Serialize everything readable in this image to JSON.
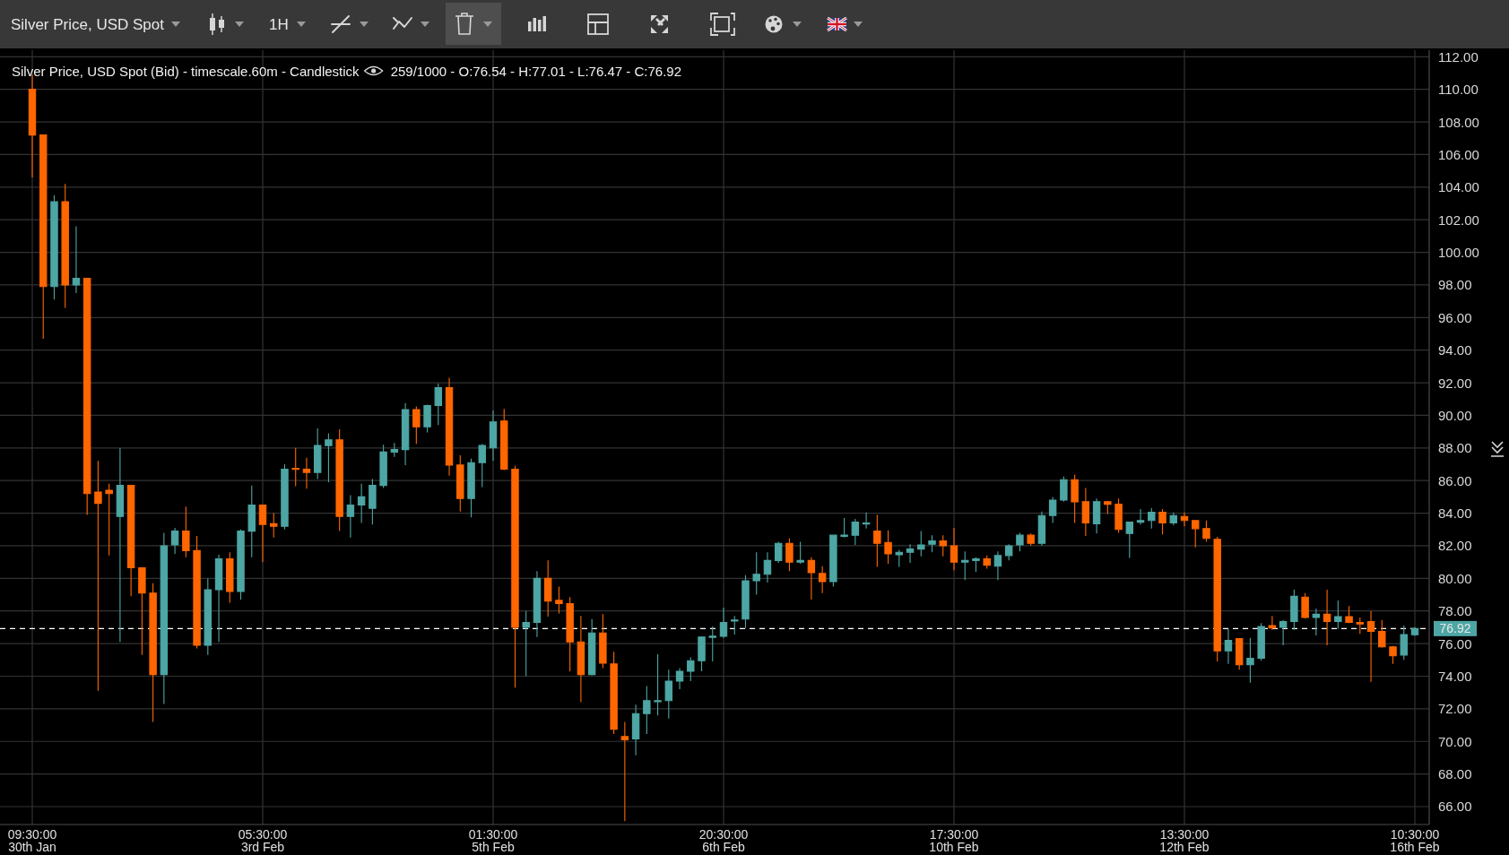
{
  "chart_data": {
    "type": "candlestick",
    "title": "Silver Price, USD Spot",
    "subtitle": "Silver Price, USD Spot (Bid) - timescale.60m - Candlestick",
    "annotations": [
      "259/1000 - O:76.54 - H:77.01 - L:76.47 - C:76.92",
      "1H"
    ],
    "categories": [
      "09:30:00\n30th Jan",
      null,
      null,
      null,
      null,
      null,
      null,
      null,
      null,
      null,
      null,
      null,
      null,
      null,
      null,
      null,
      null,
      null,
      null,
      null,
      null,
      "05:30:00\n3rd Feb",
      null,
      null,
      null,
      null,
      null,
      null,
      null,
      null,
      null,
      null,
      null,
      null,
      null,
      null,
      null,
      null,
      null,
      null,
      null,
      null,
      "01:30:00\n5th Feb",
      null,
      null,
      null,
      null,
      null,
      null,
      null,
      null,
      null,
      null,
      null,
      null,
      null,
      null,
      null,
      null,
      null,
      null,
      null,
      null,
      "20:30:00\n6th Feb",
      null,
      null,
      null,
      null,
      null,
      null,
      null,
      null,
      null,
      null,
      null,
      null,
      null,
      null,
      null,
      null,
      null,
      null,
      null,
      null,
      "17:30:00\n10th Feb",
      null,
      null,
      null,
      null,
      null,
      null,
      null,
      null,
      null,
      null,
      null,
      null,
      null,
      null,
      null,
      null,
      null,
      null,
      null,
      null,
      "13:30:00\n12th Feb",
      null,
      null,
      null,
      null,
      null,
      null,
      null,
      null,
      null,
      null,
      null,
      null,
      null,
      null,
      null,
      null,
      null,
      null,
      null,
      null,
      "10:30:00\n16th Feb"
    ],
    "ohlc": [
      [
        110.0,
        110.9,
        104.6,
        107.2
      ],
      [
        107.2,
        107.2,
        94.7,
        97.9
      ],
      [
        97.9,
        103.5,
        97.1,
        103.1
      ],
      [
        103.1,
        104.2,
        96.6,
        98.0
      ],
      [
        98.0,
        101.6,
        97.5,
        98.4
      ],
      [
        98.4,
        98.4,
        83.9,
        85.2
      ],
      [
        85.3,
        87.2,
        73.1,
        84.6
      ],
      [
        85.4,
        85.8,
        81.4,
        85.2
      ],
      [
        83.8,
        88.0,
        76.1,
        85.7
      ],
      [
        85.7,
        85.7,
        78.9,
        80.65
      ],
      [
        80.65,
        80.65,
        75.3,
        79.1
      ],
      [
        79.1,
        79.7,
        71.2,
        74.1
      ],
      [
        74.1,
        82.8,
        72.3,
        82.0
      ],
      [
        82.05,
        83.1,
        81.5,
        82.9
      ],
      [
        82.9,
        84.4,
        81.3,
        81.7
      ],
      [
        81.7,
        82.6,
        75.7,
        75.9
      ],
      [
        75.9,
        80.0,
        75.3,
        79.3
      ],
      [
        79.3,
        81.45,
        76.1,
        81.2
      ],
      [
        81.2,
        81.6,
        78.5,
        79.2
      ],
      [
        79.2,
        83.0,
        78.7,
        82.9
      ],
      [
        82.9,
        85.7,
        81.3,
        84.5
      ],
      [
        84.5,
        84.5,
        81.0,
        83.3
      ],
      [
        83.35,
        84.0,
        82.5,
        83.2
      ],
      [
        83.2,
        87.0,
        83.0,
        86.7
      ],
      [
        86.75,
        88.0,
        85.65,
        86.7
      ],
      [
        86.7,
        87.4,
        85.5,
        86.5
      ],
      [
        86.5,
        89.2,
        86.1,
        88.15
      ],
      [
        88.15,
        88.9,
        85.9,
        88.5
      ],
      [
        88.5,
        89.15,
        82.9,
        83.8
      ],
      [
        83.8,
        85.1,
        82.5,
        84.5
      ],
      [
        84.5,
        85.8,
        83.4,
        85.0
      ],
      [
        84.3,
        86.1,
        83.3,
        85.7
      ],
      [
        85.7,
        88.2,
        85.55,
        87.75
      ],
      [
        87.75,
        88.3,
        87.45,
        87.9
      ],
      [
        87.9,
        90.75,
        86.95,
        90.35
      ],
      [
        90.35,
        90.55,
        88.25,
        89.3
      ],
      [
        89.3,
        90.65,
        88.95,
        90.6
      ],
      [
        90.6,
        91.95,
        89.4,
        91.7
      ],
      [
        91.7,
        92.3,
        86.3,
        86.95
      ],
      [
        86.95,
        87.55,
        84.1,
        84.9
      ],
      [
        84.9,
        87.35,
        83.75,
        87.1
      ],
      [
        87.1,
        88.25,
        85.6,
        88.15
      ],
      [
        88.0,
        90.3,
        87.2,
        89.6
      ],
      [
        89.65,
        90.4,
        86.65,
        86.7
      ],
      [
        86.7,
        86.9,
        73.3,
        77.0
      ],
      [
        77.0,
        78.0,
        74.0,
        77.3
      ],
      [
        77.3,
        80.45,
        76.4,
        80.0
      ],
      [
        80.0,
        81.1,
        77.65,
        78.6
      ],
      [
        78.65,
        79.5,
        77.85,
        78.45
      ],
      [
        78.45,
        78.85,
        74.3,
        76.1
      ],
      [
        76.1,
        77.7,
        72.4,
        74.1
      ],
      [
        74.1,
        77.5,
        74.05,
        76.65
      ],
      [
        76.65,
        77.8,
        74.5,
        74.8
      ],
      [
        74.75,
        75.5,
        70.45,
        70.75
      ],
      [
        70.3,
        71.2,
        65.1,
        70.1
      ],
      [
        70.15,
        72.25,
        69.15,
        71.7
      ],
      [
        71.7,
        73.4,
        70.45,
        72.5
      ],
      [
        72.5,
        75.35,
        71.6,
        72.5
      ],
      [
        72.5,
        74.4,
        71.4,
        73.7
      ],
      [
        73.7,
        74.5,
        73.2,
        74.3
      ],
      [
        74.3,
        75.15,
        73.7,
        74.95
      ],
      [
        74.95,
        76.45,
        74.3,
        76.4
      ],
      [
        76.4,
        77.05,
        74.9,
        76.45
      ],
      [
        76.45,
        78.2,
        76.35,
        77.3
      ],
      [
        77.4,
        77.7,
        76.55,
        77.45
      ],
      [
        77.5,
        80.2,
        76.95,
        79.85
      ],
      [
        79.85,
        81.6,
        79.0,
        80.25
      ],
      [
        80.25,
        81.6,
        79.75,
        81.1
      ],
      [
        81.1,
        82.25,
        80.95,
        82.15
      ],
      [
        82.15,
        82.45,
        80.45,
        81.0
      ],
      [
        81.0,
        82.25,
        80.9,
        81.1
      ],
      [
        81.1,
        81.3,
        78.7,
        80.35
      ],
      [
        80.3,
        80.75,
        79.1,
        79.8
      ],
      [
        79.8,
        82.65,
        79.5,
        82.65
      ],
      [
        82.65,
        83.7,
        82.5,
        82.65
      ],
      [
        82.65,
        83.65,
        82.05,
        83.45
      ],
      [
        83.4,
        84.05,
        83.05,
        83.4
      ],
      [
        82.9,
        83.9,
        80.7,
        82.15
      ],
      [
        82.2,
        82.95,
        80.9,
        81.5
      ],
      [
        81.45,
        81.75,
        80.7,
        81.6
      ],
      [
        81.6,
        82.1,
        80.95,
        81.8
      ],
      [
        81.8,
        82.9,
        81.35,
        82.05
      ],
      [
        82.1,
        82.65,
        81.6,
        82.3
      ],
      [
        82.3,
        82.65,
        81.35,
        82.0
      ],
      [
        82.0,
        83.1,
        80.5,
        81.0
      ],
      [
        81.0,
        81.65,
        79.9,
        81.1
      ],
      [
        81.1,
        81.3,
        80.4,
        81.2
      ],
      [
        81.2,
        81.4,
        80.6,
        80.8
      ],
      [
        80.75,
        81.65,
        79.9,
        81.4
      ],
      [
        81.4,
        82.1,
        81.1,
        82.0
      ],
      [
        82.05,
        82.8,
        81.65,
        82.65
      ],
      [
        82.65,
        82.75,
        82.0,
        82.15
      ],
      [
        82.15,
        84.1,
        82.0,
        83.85
      ],
      [
        83.85,
        85.0,
        83.4,
        84.8
      ],
      [
        84.8,
        86.25,
        84.7,
        86.05
      ],
      [
        86.05,
        86.35,
        83.4,
        84.7
      ],
      [
        84.7,
        85.55,
        82.6,
        83.4
      ],
      [
        83.35,
        84.9,
        82.75,
        84.7
      ],
      [
        84.7,
        84.75,
        83.95,
        84.55
      ],
      [
        84.55,
        84.9,
        82.8,
        83.0
      ],
      [
        82.75,
        83.45,
        81.25,
        83.45
      ],
      [
        83.45,
        84.25,
        83.3,
        83.55
      ],
      [
        83.55,
        84.3,
        83.05,
        84.05
      ],
      [
        84.05,
        84.25,
        82.7,
        83.4
      ],
      [
        83.4,
        84.05,
        83.25,
        83.85
      ],
      [
        83.8,
        84.05,
        83.2,
        83.55
      ],
      [
        83.55,
        83.55,
        81.9,
        83.05
      ],
      [
        83.05,
        83.55,
        82.25,
        82.45
      ],
      [
        82.4,
        82.55,
        74.9,
        75.55
      ],
      [
        75.55,
        76.9,
        74.75,
        76.2
      ],
      [
        76.3,
        76.3,
        74.4,
        74.7
      ],
      [
        74.7,
        76.35,
        73.6,
        75.1
      ],
      [
        75.1,
        77.25,
        74.95,
        77.05
      ],
      [
        77.1,
        77.7,
        76.85,
        76.95
      ],
      [
        77.0,
        77.45,
        75.9,
        77.35
      ],
      [
        77.35,
        79.3,
        76.85,
        78.9
      ],
      [
        78.85,
        79.1,
        77.55,
        77.6
      ],
      [
        77.6,
        78.15,
        76.5,
        77.8
      ],
      [
        77.8,
        79.3,
        75.9,
        77.35
      ],
      [
        77.35,
        78.65,
        76.9,
        77.65
      ],
      [
        77.65,
        78.3,
        77.25,
        77.3
      ],
      [
        77.3,
        77.6,
        76.6,
        77.2
      ],
      [
        77.35,
        78.0,
        73.65,
        76.75
      ],
      [
        76.75,
        77.45,
        75.75,
        75.8
      ],
      [
        75.8,
        75.85,
        74.75,
        75.25
      ],
      [
        75.3,
        77.1,
        75.0,
        76.55
      ],
      [
        76.54,
        77.01,
        76.47,
        76.92
      ]
    ],
    "colors": [
      "#ff6600",
      "#ff6600",
      "#4da6a4",
      "#ff6600",
      "#4da6a4",
      "#ff6600",
      "#ff6600",
      "#ff6600",
      "#4da6a4",
      "#ff6600",
      "#ff6600",
      "#ff6600",
      "#4da6a4",
      "#4da6a4",
      "#ff6600",
      "#ff6600",
      "#4da6a4",
      "#4da6a4",
      "#ff6600",
      "#4da6a4",
      "#4da6a4",
      "#ff6600",
      "#ff6600",
      "#4da6a4",
      "#ff6600",
      "#ff6600",
      "#4da6a4",
      "#4da6a4",
      "#ff6600",
      "#4da6a4",
      "#4da6a4",
      "#4da6a4",
      "#4da6a4",
      "#4da6a4",
      "#4da6a4",
      "#ff6600",
      "#4da6a4",
      "#4da6a4",
      "#ff6600",
      "#ff6600",
      "#4da6a4",
      "#4da6a4",
      "#4da6a4",
      "#ff6600",
      "#ff6600",
      "#4da6a4",
      "#4da6a4",
      "#ff6600",
      "#ff6600",
      "#ff6600",
      "#ff6600",
      "#4da6a4",
      "#ff6600",
      "#ff6600",
      "#ff6600",
      "#4da6a4",
      "#4da6a4",
      "#4da6a4",
      "#4da6a4",
      "#4da6a4",
      "#4da6a4",
      "#4da6a4",
      "#4da6a4",
      "#4da6a4",
      "#4da6a4",
      "#4da6a4",
      "#4da6a4",
      "#4da6a4",
      "#4da6a4",
      "#ff6600",
      "#4da6a4",
      "#ff6600",
      "#ff6600",
      "#4da6a4",
      "#4da6a4",
      "#4da6a4",
      "#4da6a4",
      "#ff6600",
      "#ff6600",
      "#4da6a4",
      "#4da6a4",
      "#4da6a4",
      "#4da6a4",
      "#ff6600",
      "#ff6600",
      "#4da6a4",
      "#4da6a4",
      "#ff6600",
      "#4da6a4",
      "#4da6a4",
      "#4da6a4",
      "#ff6600",
      "#4da6a4",
      "#4da6a4",
      "#4da6a4",
      "#ff6600",
      "#ff6600",
      "#4da6a4",
      "#ff6600",
      "#ff6600",
      "#4da6a4",
      "#4da6a4",
      "#4da6a4",
      "#ff6600",
      "#4da6a4",
      "#ff6600",
      "#ff6600",
      "#ff6600",
      "#ff6600",
      "#4da6a4",
      "#ff6600",
      "#4da6a4",
      "#4da6a4",
      "#ff6600",
      "#4da6a4",
      "#4da6a4",
      "#ff6600",
      "#4da6a4",
      "#ff6600",
      "#4da6a4",
      "#ff6600",
      "#ff6600",
      "#ff6600",
      "#ff6600",
      "#ff6600",
      "#4da6a4",
      "#4da6a4"
    ],
    "ylim": [
      64.9,
      112.4
    ],
    "yticks": [
      {
        "value": 66,
        "label": "66.00"
      },
      {
        "value": 68,
        "label": "68.00"
      },
      {
        "value": 70,
        "label": "70.00"
      },
      {
        "value": 72,
        "label": "72.00"
      },
      {
        "value": 74,
        "label": "74.00"
      },
      {
        "value": 76,
        "label": "76.00"
      },
      {
        "value": 78,
        "label": "78.00"
      },
      {
        "value": 80,
        "label": "80.00"
      },
      {
        "value": 82,
        "label": "82.00"
      },
      {
        "value": 84,
        "label": "84.00"
      },
      {
        "value": 86,
        "label": "86.00"
      },
      {
        "value": 88,
        "label": "88.00"
      },
      {
        "value": 90,
        "label": "90.00"
      },
      {
        "value": 92,
        "label": "92.00"
      },
      {
        "value": 94,
        "label": "94.00"
      },
      {
        "value": 96,
        "label": "96.00"
      },
      {
        "value": 98,
        "label": "98.00"
      },
      {
        "value": 100,
        "label": "100.00"
      },
      {
        "value": 102,
        "label": "102.00"
      },
      {
        "value": 104,
        "label": "104.00"
      },
      {
        "value": 106,
        "label": "106.00"
      },
      {
        "value": 108,
        "label": "108.00"
      },
      {
        "value": 110,
        "label": "110.00"
      },
      {
        "value": 112,
        "label": "112.00"
      }
    ],
    "grid": true,
    "ref_lines": [
      {
        "axis": "y",
        "value": 76.92,
        "label": "76.92",
        "color": "#ffffff",
        "line_style": "dashed"
      }
    ]
  }
}
